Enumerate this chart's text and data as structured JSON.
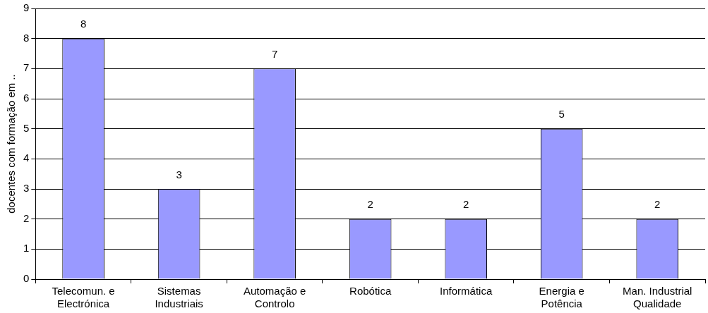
{
  "chart_data": {
    "type": "bar",
    "ylabel": "docentes com formação em ..",
    "categories": [
      "Telecomun. e\nElectrónica",
      "Sistemas\nIndustriais",
      "Automação e\nControlo",
      "Robótica",
      "Informática",
      "Energia e\nPotência",
      "Man. Industrial\nQualidade"
    ],
    "values": [
      8,
      3,
      7,
      2,
      2,
      5,
      2
    ],
    "color": "#9999ff",
    "ylim": [
      0,
      9
    ],
    "yticks": [
      0,
      1,
      2,
      3,
      4,
      5,
      6,
      7,
      8,
      9
    ],
    "grid": "y",
    "data_labels": true,
    "legend": false
  }
}
